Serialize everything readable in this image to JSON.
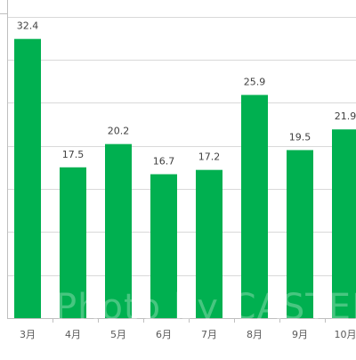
{
  "chart_data": {
    "type": "bar",
    "categories": [
      "3月",
      "4月",
      "5月",
      "6月",
      "7月",
      "8月",
      "9月",
      "10月"
    ],
    "values": [
      32.4,
      17.5,
      20.2,
      16.7,
      17.2,
      25.9,
      19.5,
      21.9
    ],
    "value_labels": [
      "32.4",
      "17.5",
      "20.2",
      "16.7",
      "17.2",
      "25.9",
      "19.5",
      "21.9"
    ],
    "title": "",
    "xlabel": "",
    "ylabel": "",
    "ylim": [
      0,
      35
    ],
    "grid": true,
    "bar_color": "#00b050",
    "grid_color": "#d9d9d9"
  },
  "watermark": "Photo by CASTEL"
}
